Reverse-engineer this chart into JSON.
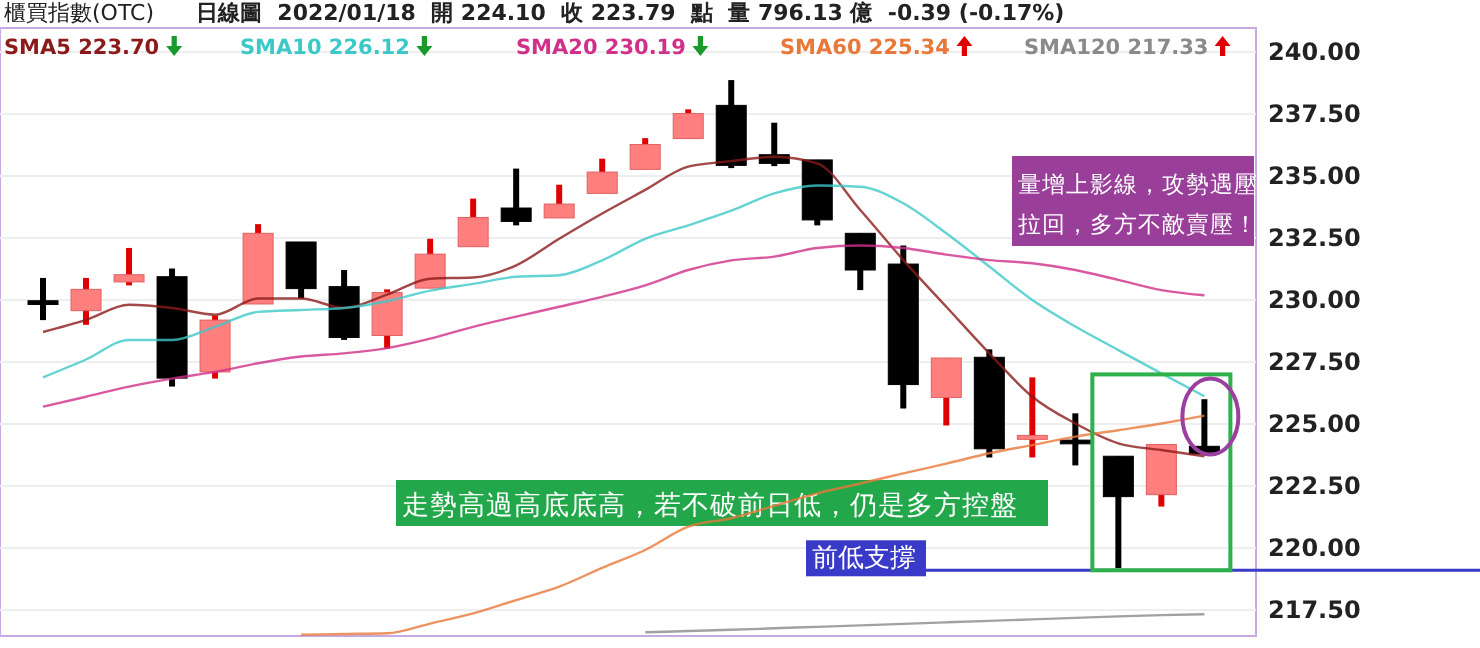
{
  "chart_data": {
    "type": "candlestick",
    "title": "櫃買指數(OTC)",
    "subtitle": "日線圖  2022/01/18  開 224.10  收 223.79  點  量 796.13 億  -0.39 (-0.17%)",
    "categories": [
      null,
      null,
      null,
      null,
      null,
      null,
      null,
      null,
      null,
      null,
      null,
      null,
      null,
      null,
      null,
      null,
      null,
      null,
      null,
      null,
      null,
      null,
      null,
      null,
      null,
      null,
      null,
      null
    ],
    "ohlc": [
      [
        229.97,
        230.89,
        229.19,
        229.82
      ],
      [
        229.57,
        230.89,
        229.0,
        230.43
      ],
      [
        230.73,
        232.1,
        230.59,
        231.02
      ],
      [
        230.94,
        231.27,
        226.51,
        226.85
      ],
      [
        227.1,
        229.38,
        226.83,
        229.19
      ],
      [
        229.84,
        233.06,
        229.84,
        232.69
      ],
      [
        232.34,
        232.34,
        230.06,
        230.46
      ],
      [
        230.54,
        231.21,
        228.39,
        228.49
      ],
      [
        228.57,
        230.43,
        228.04,
        230.3
      ],
      [
        230.48,
        232.47,
        230.48,
        231.85
      ],
      [
        232.15,
        234.09,
        232.15,
        233.33
      ],
      [
        233.71,
        235.3,
        233.01,
        233.17
      ],
      [
        233.31,
        234.65,
        233.31,
        233.87
      ],
      [
        234.3,
        235.7,
        234.3,
        235.16
      ],
      [
        235.27,
        236.53,
        235.27,
        236.27
      ],
      [
        236.51,
        237.69,
        236.51,
        237.52
      ],
      [
        237.85,
        238.87,
        235.32,
        235.43
      ],
      [
        235.86,
        237.15,
        235.4,
        235.51
      ],
      [
        235.65,
        235.65,
        233.01,
        233.23
      ],
      [
        232.69,
        232.69,
        230.4,
        231.21
      ],
      [
        231.45,
        232.2,
        225.62,
        226.59
      ],
      [
        226.07,
        227.66,
        224.94,
        227.66
      ],
      [
        227.69,
        228.01,
        223.65,
        224.0
      ],
      [
        224.38,
        226.88,
        223.65,
        224.54
      ],
      [
        224.35,
        225.43,
        223.33,
        224.2
      ],
      [
        223.7,
        223.7,
        219.19,
        222.07
      ],
      [
        222.15,
        224.17,
        221.67,
        224.17
      ],
      [
        224.1,
        226.0,
        223.75,
        223.79
      ]
    ],
    "series": [
      {
        "name": "SMA5 223.70",
        "type": "line",
        "color": "#8b1a1a",
        "values": [
          228.71,
          229.2,
          229.81,
          229.68,
          229.41,
          230.06,
          230.06,
          229.68,
          230.22,
          230.86,
          230.91,
          231.4,
          232.47,
          233.49,
          234.44,
          235.38,
          235.6,
          235.78,
          235.51,
          233.63,
          231.61,
          229.73,
          227.85,
          226.1,
          225.02,
          224.22,
          223.95,
          223.7
        ]
      },
      {
        "name": "SMA10 226.12",
        "type": "line",
        "color": "#3cc8c8",
        "values": [
          226.88,
          227.6,
          228.39,
          228.39,
          228.92,
          229.52,
          229.6,
          229.68,
          229.95,
          230.38,
          230.65,
          230.94,
          231.0,
          231.6,
          232.47,
          233.01,
          233.6,
          234.3,
          234.62,
          234.57,
          233.9,
          232.69,
          231.35,
          230.0,
          228.93,
          227.98,
          227.04,
          226.12
        ]
      },
      {
        "name": "SMA20 230.19",
        "type": "line",
        "color": "#d0308a",
        "values": [
          225.7,
          226.1,
          226.51,
          226.83,
          227.1,
          227.45,
          227.72,
          227.85,
          228.06,
          228.44,
          228.92,
          229.33,
          229.73,
          230.13,
          230.59,
          231.21,
          231.6,
          231.75,
          232.1,
          232.2,
          232.1,
          231.83,
          231.61,
          231.48,
          231.21,
          230.81,
          230.4,
          230.19
        ]
      },
      {
        "name": "SMA60 225.34",
        "type": "line",
        "color": "#e8783a",
        "values": [
          null,
          null,
          null,
          null,
          null,
          null,
          216.5,
          216.53,
          216.56,
          216.95,
          217.36,
          217.9,
          218.44,
          219.2,
          219.92,
          220.86,
          221.2,
          221.7,
          222.2,
          222.6,
          223.01,
          223.4,
          223.82,
          224.15,
          224.49,
          224.75,
          225.02,
          225.34
        ]
      },
      {
        "name": "SMA120 217.33",
        "type": "line",
        "color": "#8a8a8a",
        "values": [
          null,
          null,
          null,
          null,
          null,
          null,
          null,
          null,
          null,
          null,
          null,
          null,
          null,
          null,
          216.6,
          216.65,
          216.7,
          216.76,
          216.82,
          216.88,
          216.94,
          217.0,
          217.06,
          217.12,
          217.18,
          217.24,
          217.29,
          217.33
        ]
      }
    ],
    "ylim": [
      216.45,
      240.97
    ],
    "yticks": [
      {
        "value": 217.5,
        "label": "217.50"
      },
      {
        "value": 220,
        "label": "220.00"
      },
      {
        "value": 222.5,
        "label": "222.50"
      },
      {
        "value": 225,
        "label": "225.00"
      },
      {
        "value": 227.5,
        "label": "227.50"
      },
      {
        "value": 230,
        "label": "230.00"
      },
      {
        "value": 232.5,
        "label": "232.50"
      },
      {
        "value": 235,
        "label": "235.00"
      },
      {
        "value": 237.5,
        "label": "237.50"
      },
      {
        "value": 240,
        "label": "240.00"
      }
    ],
    "tick_labels": "y",
    "grid": "y",
    "legend": "top",
    "ref_lines": [
      {
        "axis": "y",
        "value": 219.1,
        "label": "前低支撐",
        "color": "#3a3ac8"
      }
    ],
    "annotations": [
      "走勢高過高底底高，若不破前日低，仍是多方控盤",
      "量增上影線，攻勢遇壓拉回，多方不敵賣壓！"
    ]
  }
}
